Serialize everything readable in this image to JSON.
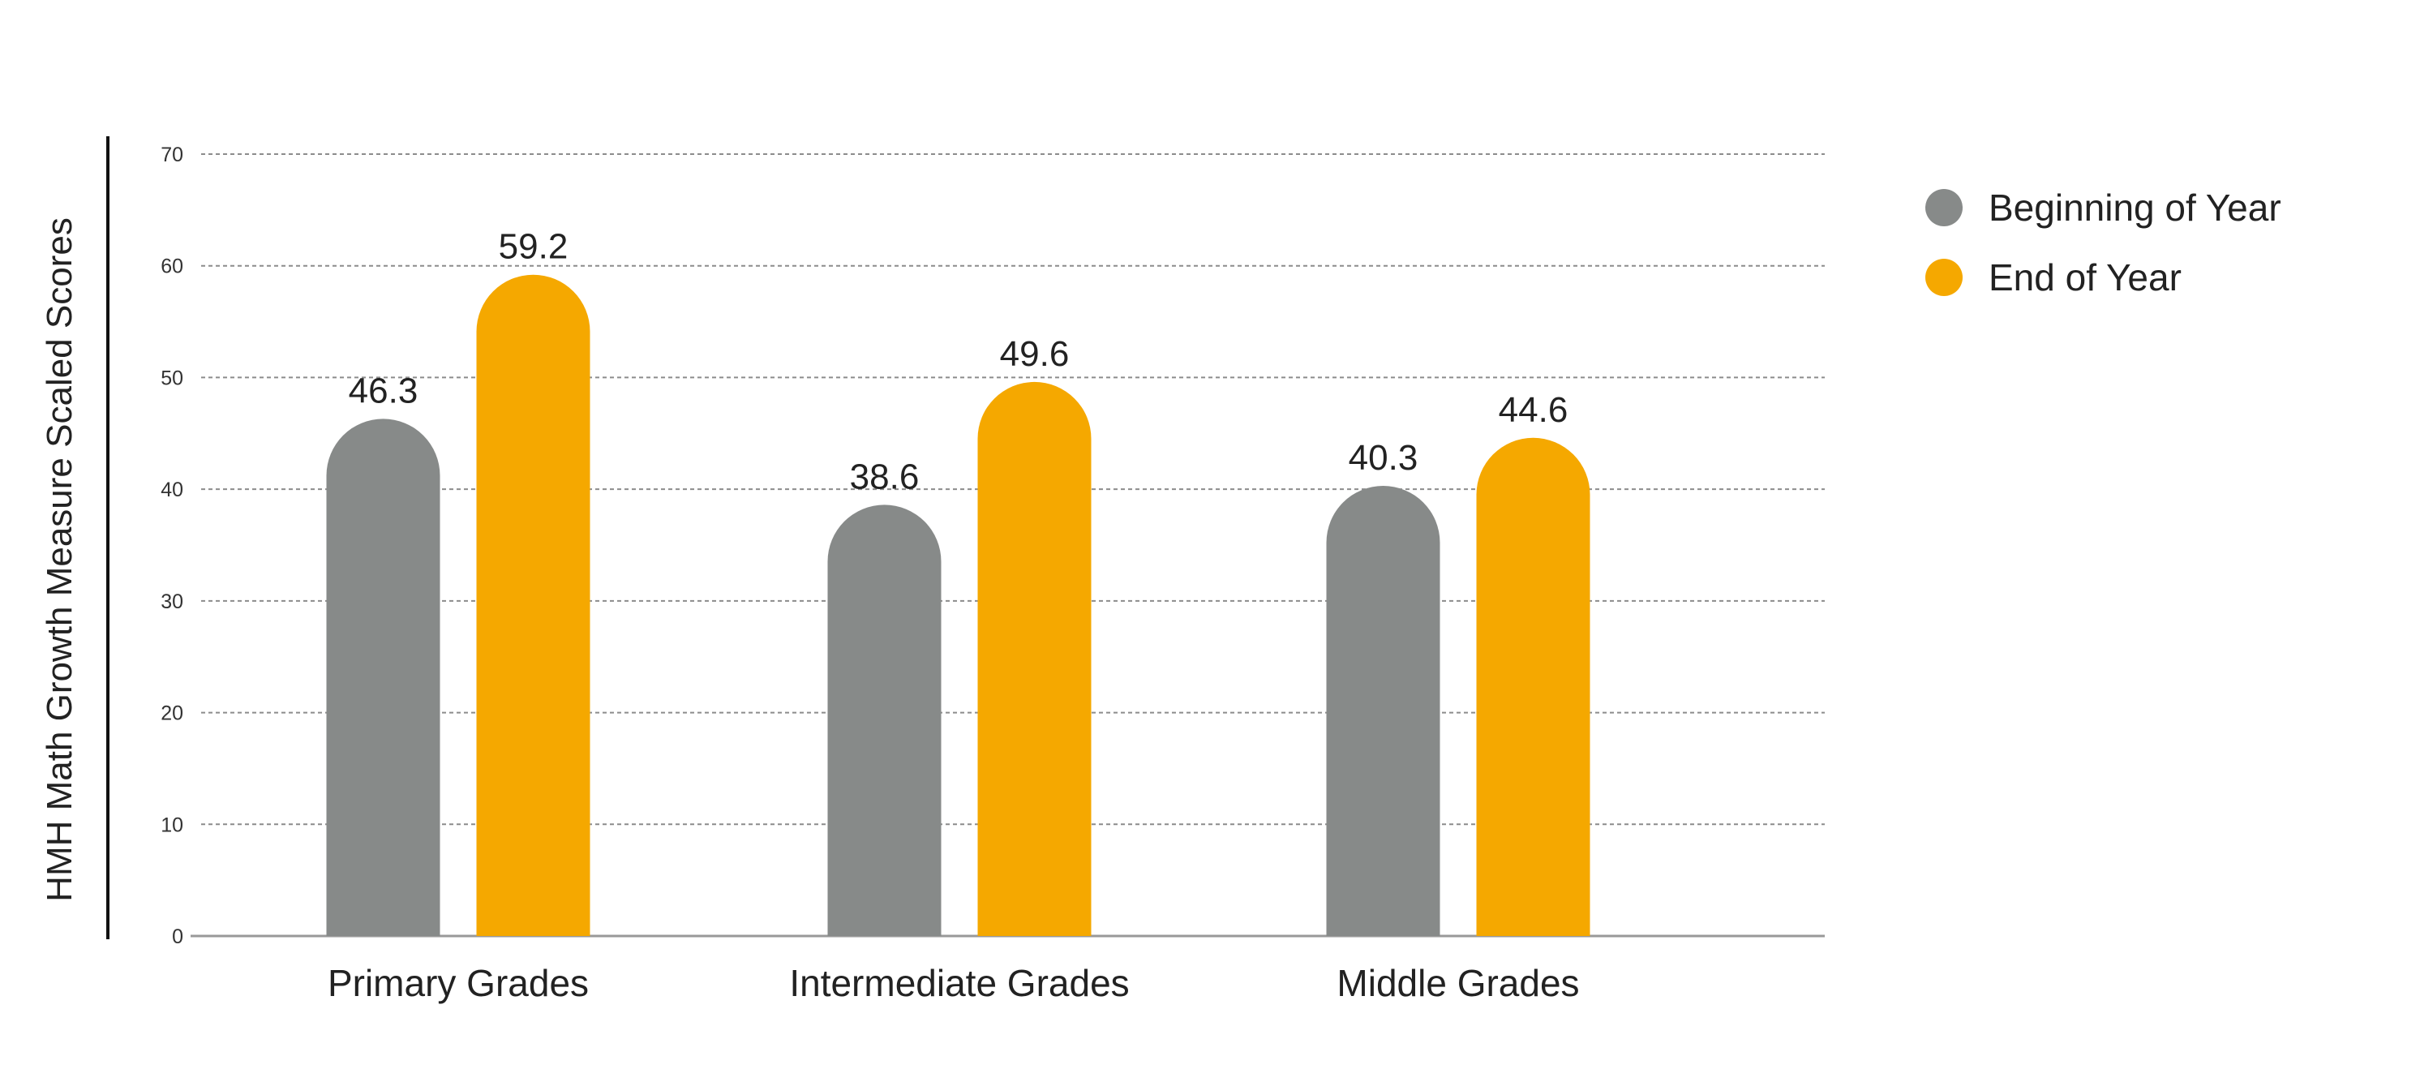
{
  "chart_data": {
    "type": "bar",
    "ylabel": "HMH Math Growth Measure Scaled Scores",
    "xlabel": "",
    "categories": [
      "Primary Grades",
      "Intermediate Grades",
      "Middle Grades"
    ],
    "series": [
      {
        "name": "Beginning of Year",
        "color": "#878a89",
        "values": [
          46.3,
          38.6,
          40.3
        ]
      },
      {
        "name": "End of Year",
        "color": "#f5a800",
        "values": [
          59.2,
          49.6,
          44.6
        ]
      }
    ],
    "ylim": [
      0,
      70
    ],
    "yticks": [
      0,
      10,
      20,
      30,
      40,
      50,
      60,
      70
    ],
    "grid": true,
    "legend_position": "top-right"
  }
}
